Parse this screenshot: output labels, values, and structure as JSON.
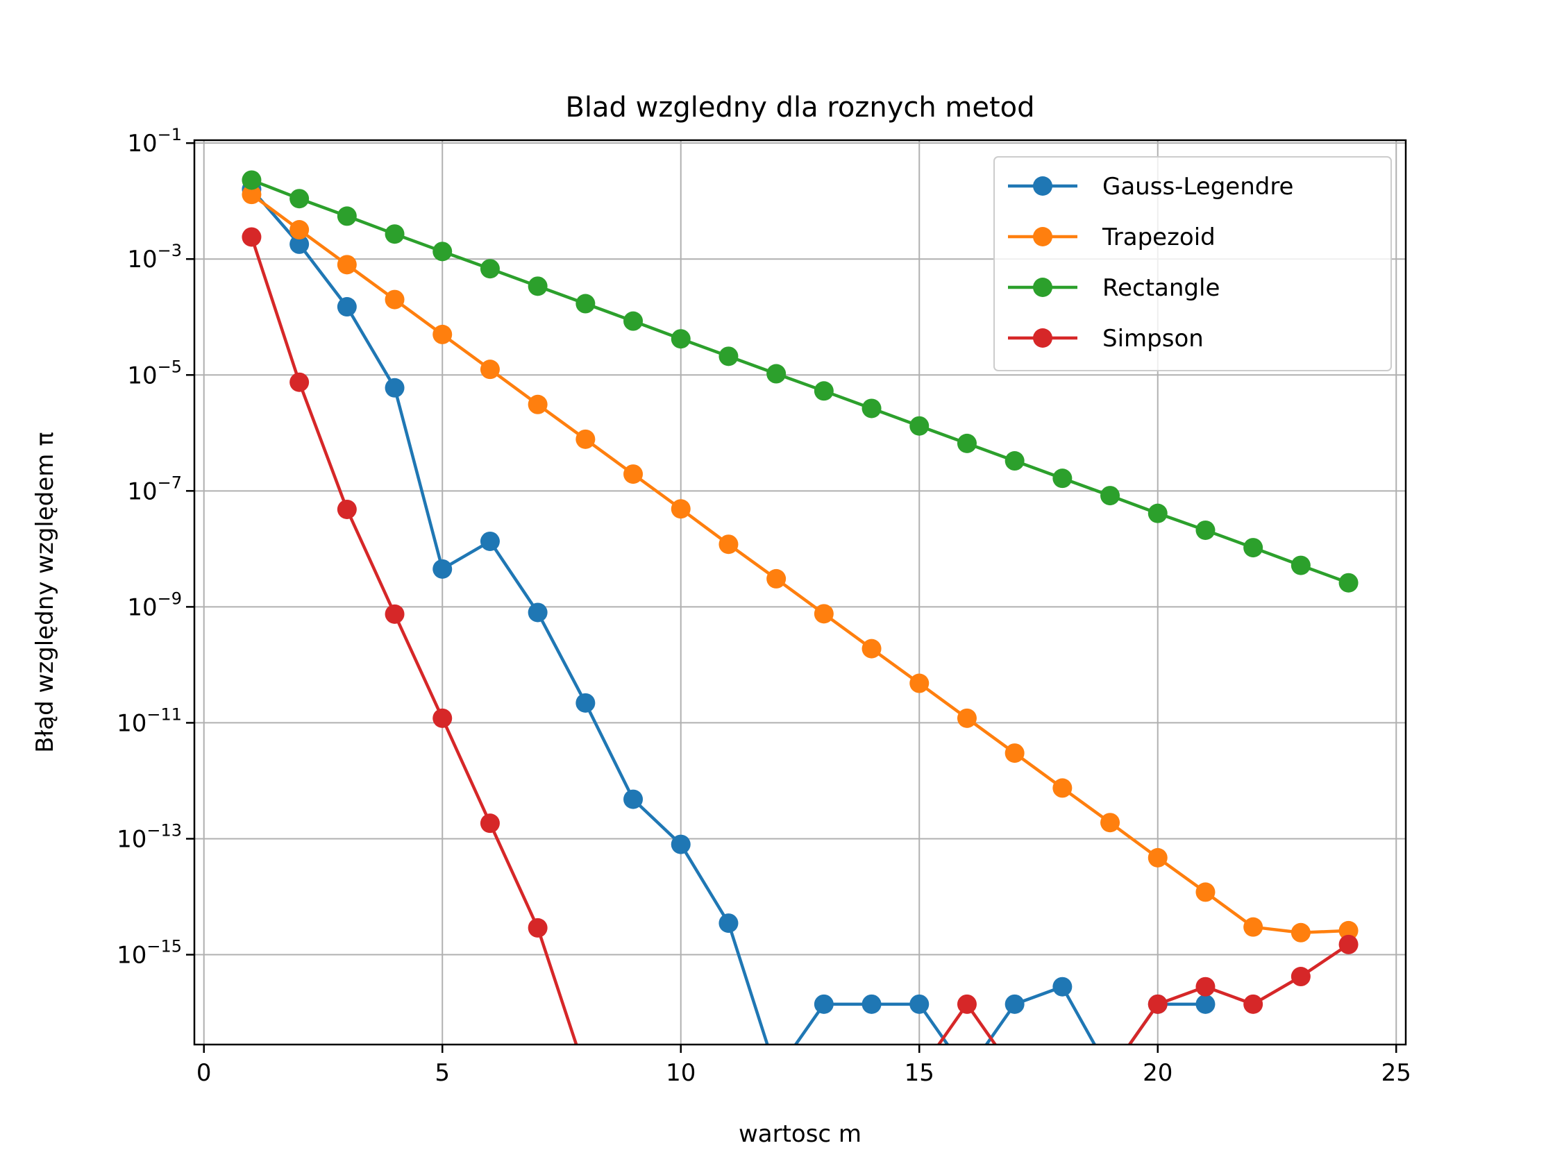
{
  "chart_data": {
    "type": "line",
    "title": "Blad wzgledny dla roznych metod",
    "xlabel": "wartosc m",
    "ylabel": "Błąd względny względem π",
    "xlim": [
      -0.2,
      25.2
    ],
    "ylim_exp": [
      -16.55,
      -0.95
    ],
    "yscale": "log",
    "grid": true,
    "legend_position": "top-right",
    "x_ticks": [
      0,
      5,
      10,
      15,
      20,
      25
    ],
    "y_ticks": [
      {
        "exp": -1,
        "base": "10",
        "sup": "−1"
      },
      {
        "exp": -3,
        "base": "10",
        "sup": "−3"
      },
      {
        "exp": -5,
        "base": "10",
        "sup": "−5"
      },
      {
        "exp": -7,
        "base": "10",
        "sup": "−7"
      },
      {
        "exp": -9,
        "base": "10",
        "sup": "−9"
      },
      {
        "exp": -11,
        "base": "10",
        "sup": "−11"
      },
      {
        "exp": -13,
        "base": "10",
        "sup": "−13"
      },
      {
        "exp": -15,
        "base": "10",
        "sup": "−15"
      }
    ],
    "x_tick_labels": [
      "0",
      "5",
      "10",
      "15",
      "20",
      "25"
    ],
    "series": [
      {
        "name": "Gauss-Legendre",
        "color": "#1f77b4",
        "points": [
          [
            1,
            0.016
          ],
          [
            2,
            0.0018
          ],
          [
            3,
            0.00015
          ],
          [
            4,
            6e-06
          ],
          [
            5,
            4.5e-09
          ],
          [
            6,
            1.35e-08
          ],
          [
            7,
            8e-10
          ],
          [
            8,
            2.2e-11
          ],
          [
            9,
            4.8e-13
          ],
          [
            10,
            8e-14
          ],
          [
            11,
            3.5e-15
          ],
          [
            12,
            0
          ],
          [
            13,
            1.4e-16
          ],
          [
            14,
            1.4e-16
          ],
          [
            15,
            1.4e-16
          ],
          [
            16,
            0
          ],
          [
            17,
            1.4e-16
          ],
          [
            18,
            2.8e-16
          ],
          [
            19,
            0
          ],
          [
            20,
            1.4e-16
          ],
          [
            21,
            1.4e-16
          ]
        ]
      },
      {
        "name": "Trapezoid",
        "color": "#ff7f0e",
        "points": [
          [
            1,
            0.013
          ],
          [
            2,
            0.0032
          ],
          [
            3,
            0.0008
          ],
          [
            4,
            0.0002
          ],
          [
            5,
            5e-05
          ],
          [
            6,
            1.25e-05
          ],
          [
            7,
            3.1e-06
          ],
          [
            8,
            7.8e-07
          ],
          [
            9,
            1.95e-07
          ],
          [
            10,
            4.9e-08
          ],
          [
            11,
            1.2e-08
          ],
          [
            12,
            3.05e-09
          ],
          [
            13,
            7.6e-10
          ],
          [
            14,
            1.9e-10
          ],
          [
            15,
            4.8e-11
          ],
          [
            16,
            1.2e-11
          ],
          [
            17,
            3e-12
          ],
          [
            18,
            7.5e-13
          ],
          [
            19,
            1.9e-13
          ],
          [
            20,
            4.7e-14
          ],
          [
            21,
            1.2e-14
          ],
          [
            22,
            3e-15
          ],
          [
            23,
            2.4e-15
          ],
          [
            24,
            2.6e-15
          ]
        ]
      },
      {
        "name": "Rectangle",
        "color": "#2ca02c",
        "points": [
          [
            1,
            0.023
          ],
          [
            2,
            0.011
          ],
          [
            3,
            0.0055
          ],
          [
            4,
            0.0027
          ],
          [
            5,
            0.00135
          ],
          [
            6,
            0.00068
          ],
          [
            7,
            0.00034
          ],
          [
            8,
            0.00017
          ],
          [
            9,
            8.5e-05
          ],
          [
            10,
            4.2e-05
          ],
          [
            11,
            2.1e-05
          ],
          [
            12,
            1.05e-05
          ],
          [
            13,
            5.3e-06
          ],
          [
            14,
            2.65e-06
          ],
          [
            15,
            1.32e-06
          ],
          [
            16,
            6.6e-07
          ],
          [
            17,
            3.3e-07
          ],
          [
            18,
            1.65e-07
          ],
          [
            19,
            8.3e-08
          ],
          [
            20,
            4.1e-08
          ],
          [
            21,
            2.1e-08
          ],
          [
            22,
            1.05e-08
          ],
          [
            23,
            5.2e-09
          ],
          [
            24,
            2.6e-09
          ]
        ]
      },
      {
        "name": "Simpson",
        "color": "#d62728",
        "points": [
          [
            1,
            0.0024
          ],
          [
            2,
            7.5e-06
          ],
          [
            3,
            4.8e-08
          ],
          [
            4,
            7.5e-10
          ],
          [
            5,
            1.2e-11
          ],
          [
            6,
            1.85e-13
          ],
          [
            7,
            2.9e-15
          ],
          [
            8,
            0
          ],
          [
            15,
            0
          ],
          [
            16,
            1.4e-16
          ],
          [
            17,
            0
          ],
          [
            19,
            0
          ],
          [
            20,
            1.4e-16
          ],
          [
            21,
            2.8e-16
          ],
          [
            22,
            1.4e-16
          ],
          [
            23,
            4.2e-16
          ],
          [
            24,
            1.5e-15
          ]
        ]
      }
    ]
  }
}
